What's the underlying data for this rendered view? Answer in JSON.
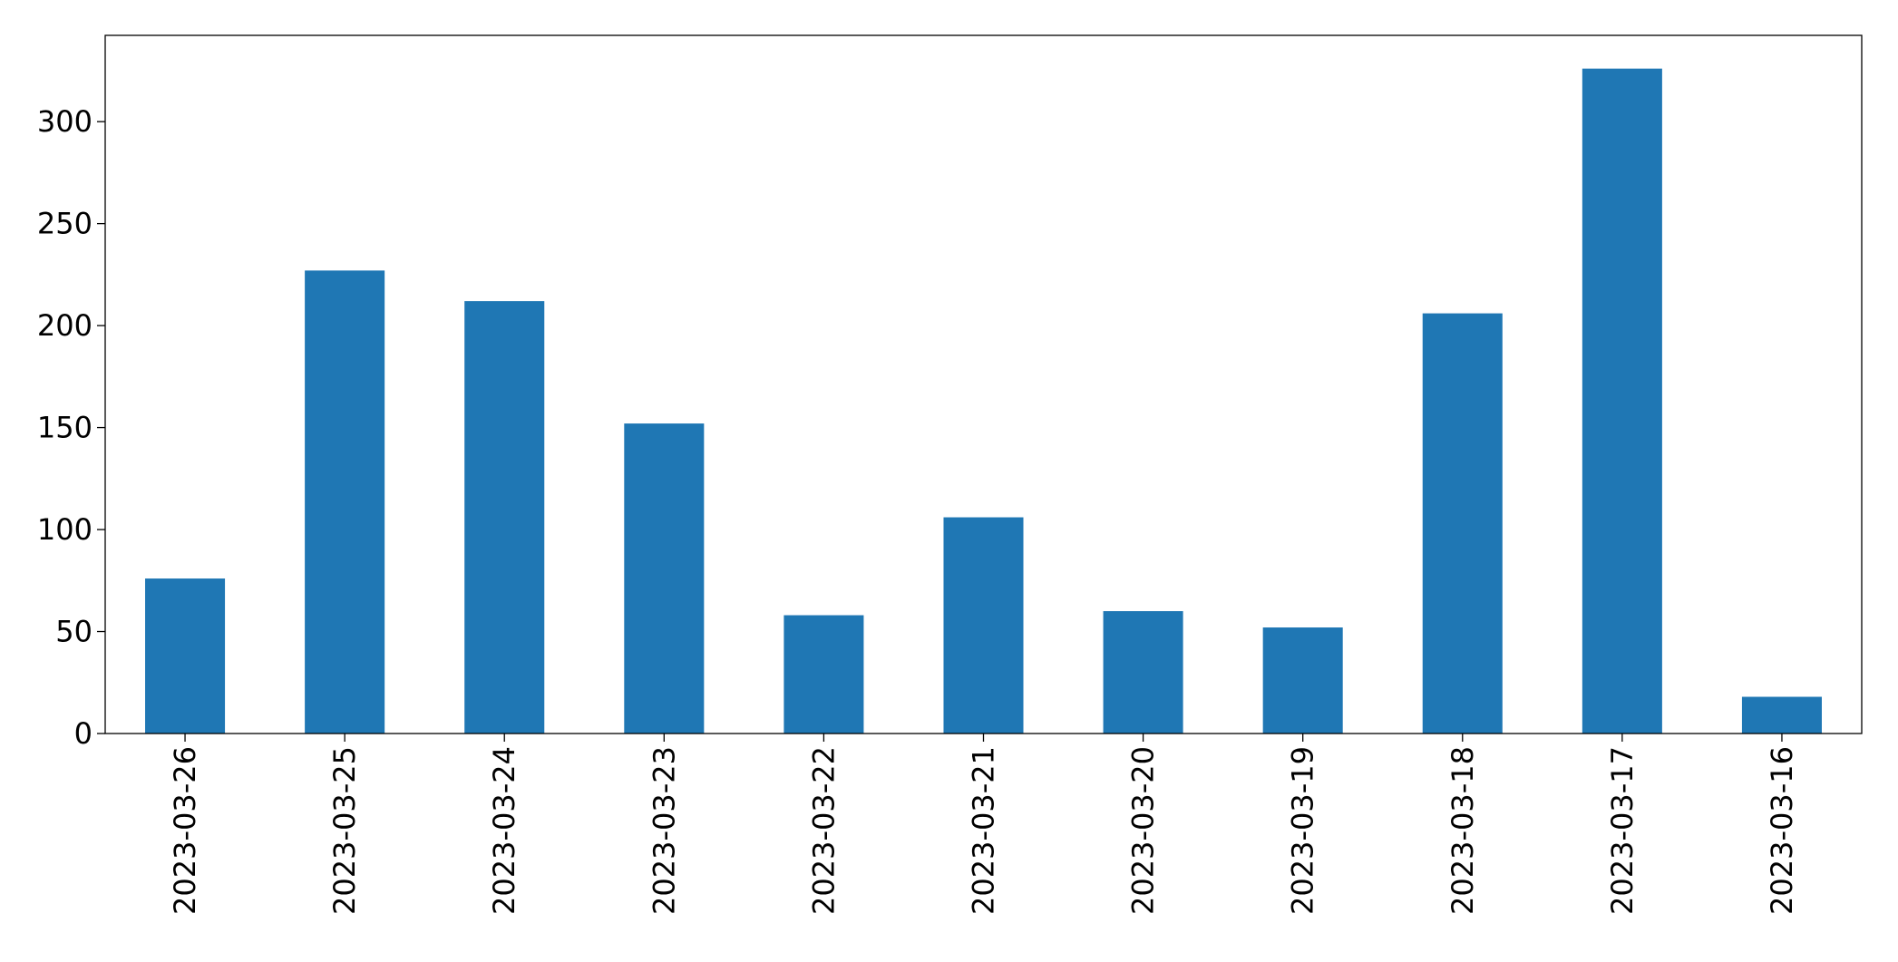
{
  "chart_data": {
    "type": "bar",
    "categories": [
      "2023-03-26",
      "2023-03-25",
      "2023-03-24",
      "2023-03-23",
      "2023-03-22",
      "2023-03-21",
      "2023-03-20",
      "2023-03-19",
      "2023-03-18",
      "2023-03-17",
      "2023-03-16"
    ],
    "values": [
      76,
      227,
      212,
      152,
      58,
      106,
      60,
      52,
      206,
      326,
      18
    ],
    "color": "#1f77b4",
    "ylim": [
      0,
      342.3
    ],
    "yticks": [
      0,
      50,
      100,
      150,
      200,
      250,
      300
    ],
    "grid": false
  }
}
